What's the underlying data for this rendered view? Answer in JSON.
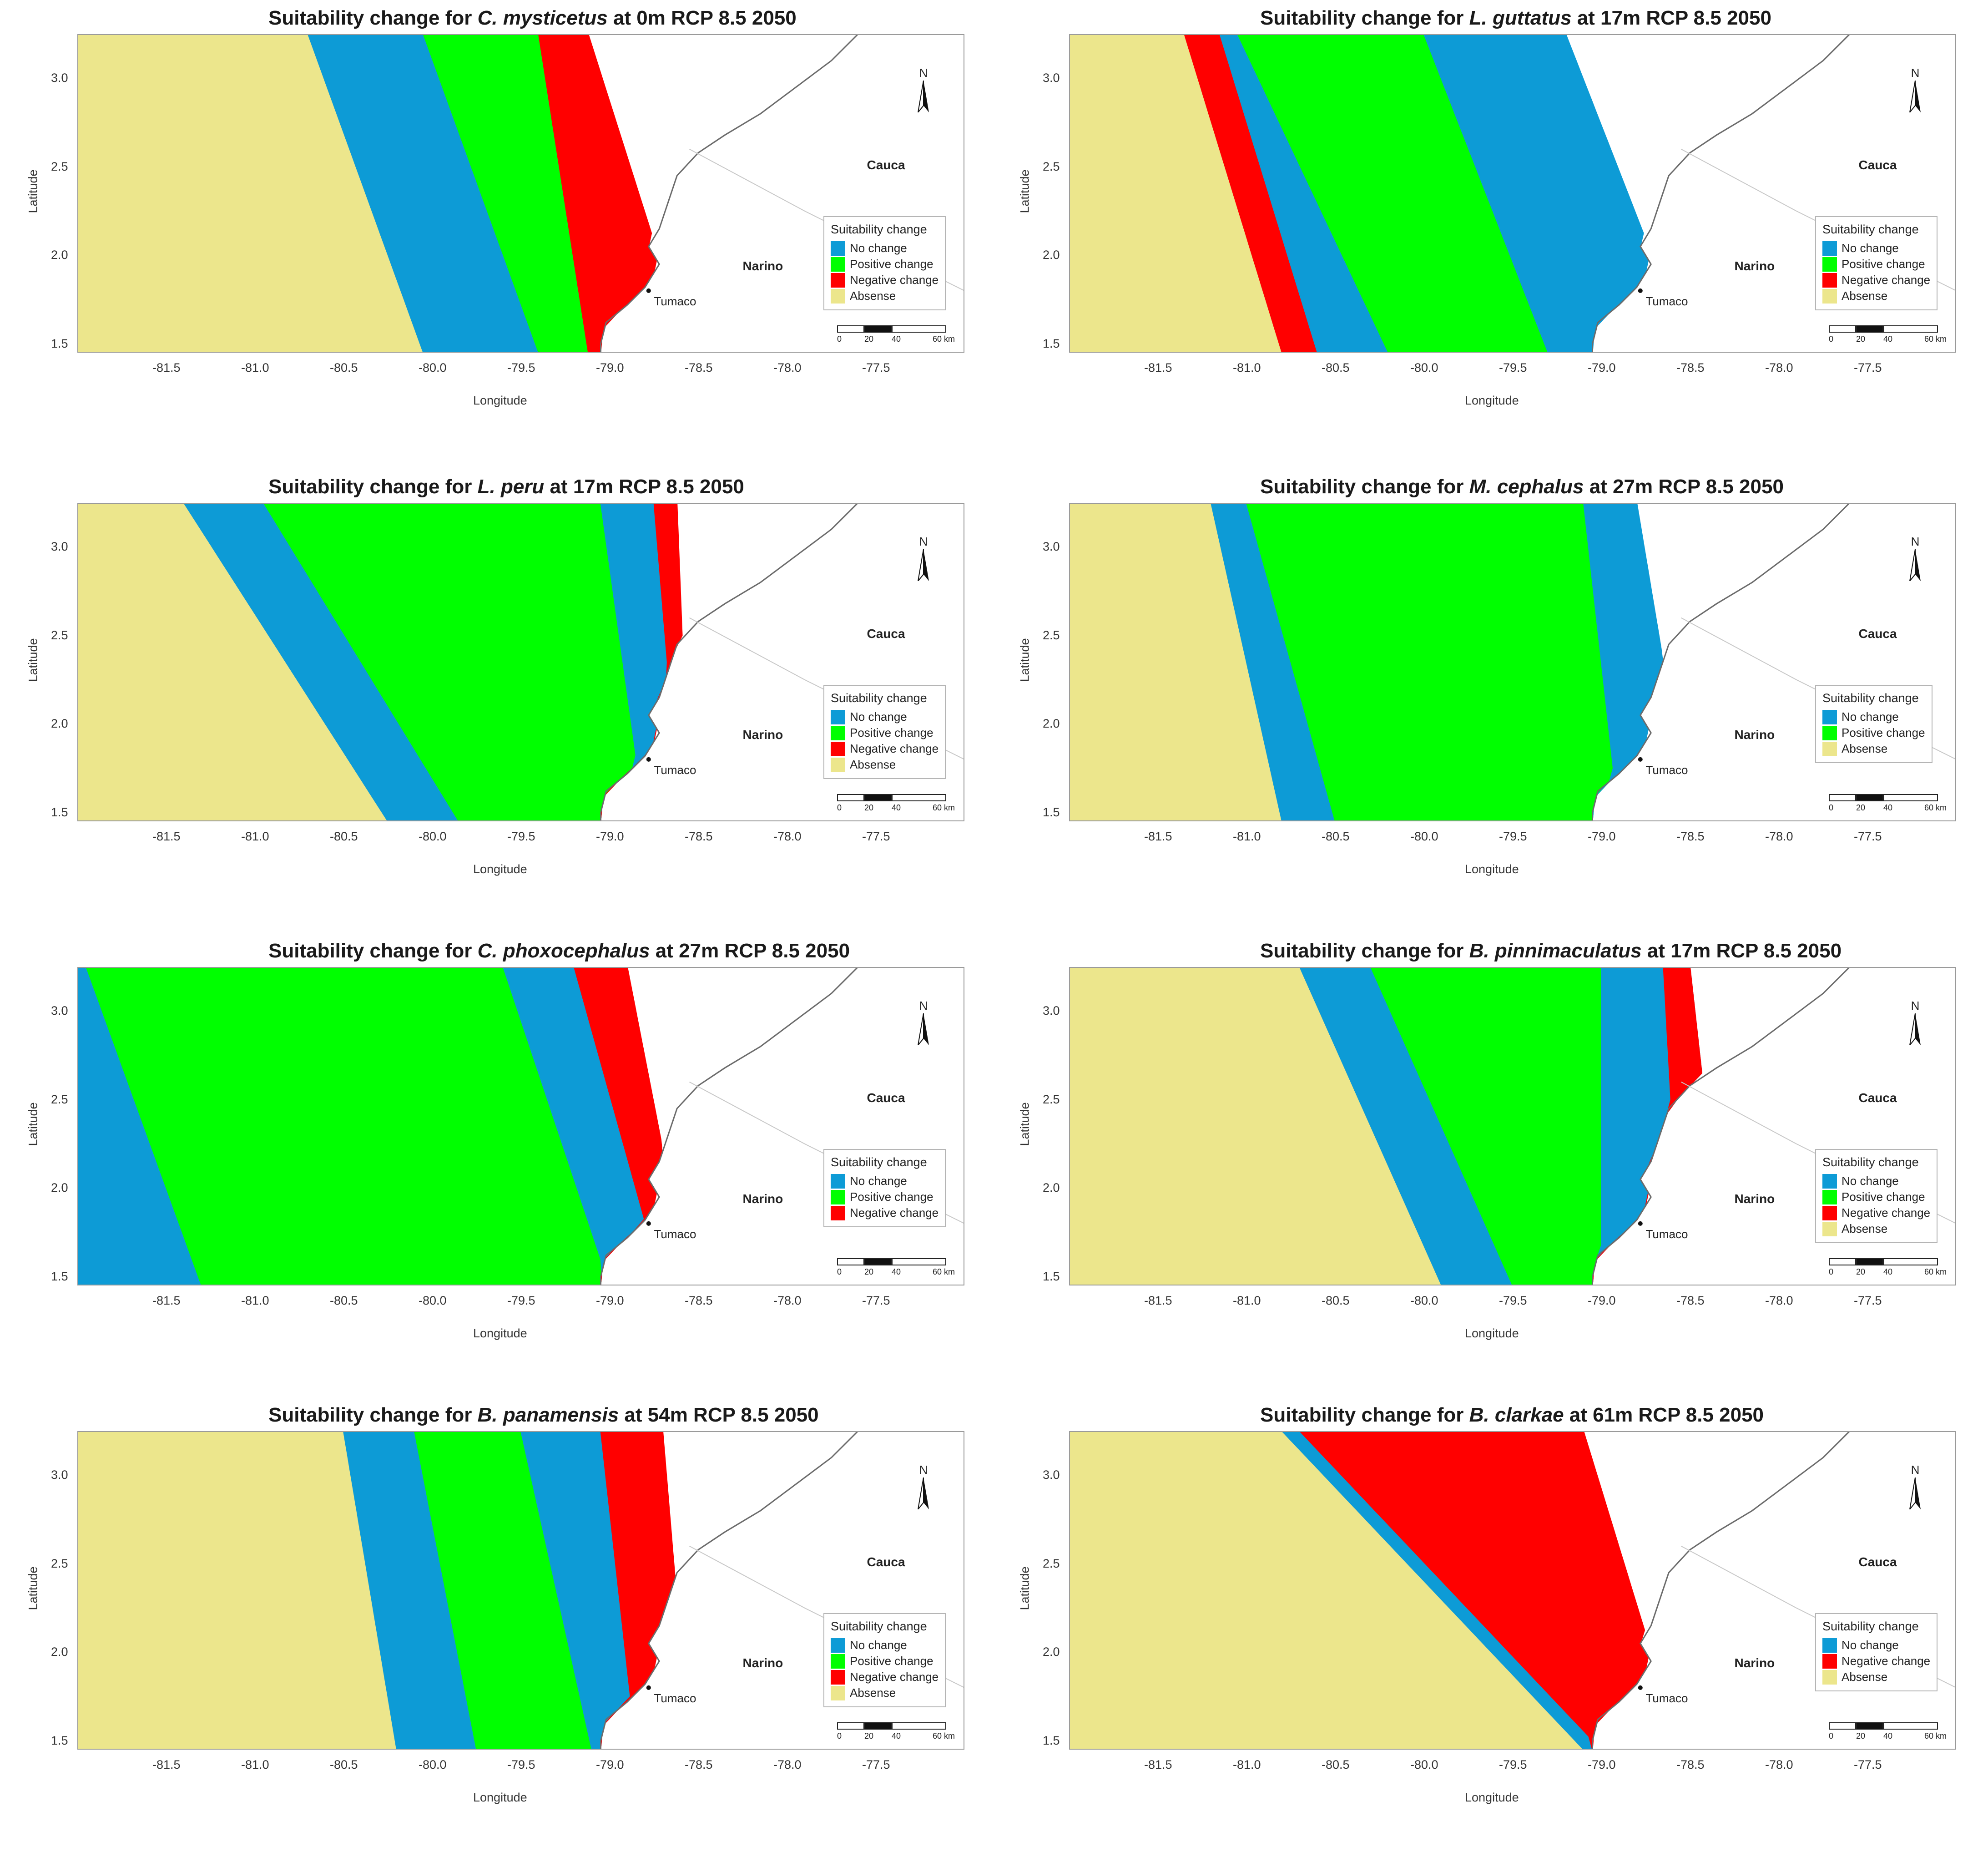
{
  "colors": {
    "no_change": "#0d9bd6",
    "positive_change": "#00ff00",
    "negative_change": "#ff0000",
    "absence": "#ece68c",
    "land": "#ffffff",
    "coast": "#6b6b6b"
  },
  "legend_title": "Suitability change",
  "axes": {
    "xlabel": "Longitude",
    "ylabel": "Latitude",
    "xticks": [
      "-81.5",
      "-81.0",
      "-80.5",
      "-80.0",
      "-79.5",
      "-79.0",
      "-78.5",
      "-78.0",
      "-77.5"
    ],
    "yticks": [
      "3.0",
      "2.5",
      "2.0",
      "1.5"
    ]
  },
  "places": {
    "cauca": "Cauca",
    "narino": "Narino",
    "tumaco": "Tumaco"
  },
  "north_label": "N",
  "scale_labels": [
    "0",
    "20",
    "40",
    "60 km"
  ],
  "panels": [
    {
      "title_prefix": "Suitability change for ",
      "species": "C. mysticetus",
      "title_suffix": " at 0m RCP 8.5 2050",
      "legend": [
        "No change",
        "Positive change",
        "Negative change",
        "Absense"
      ],
      "zones": [
        "absence",
        "no_change",
        "positive_change",
        "negative_change",
        "land"
      ],
      "bounds": [
        [
          -80.7,
          -80.05
        ],
        [
          -80.05,
          -79.4
        ],
        [
          -79.4,
          -79.12
        ],
        [
          -79.12,
          -78.55
        ]
      ]
    },
    {
      "title_prefix": "Suitability change for ",
      "species": "L. guttatus",
      "title_suffix": " at 17m RCP 8.5 2050",
      "legend": [
        "No change",
        "Positive change",
        "Negative change",
        "Absense"
      ],
      "zones": [
        "absence",
        "negative_change",
        "no_change",
        "positive_change",
        "no_change",
        "land"
      ],
      "bounds": [
        [
          -81.35,
          -80.8
        ],
        [
          -81.15,
          -80.6
        ],
        [
          -81.05,
          -80.2
        ],
        [
          -80.0,
          -79.3
        ],
        [
          -79.2,
          -78.5
        ]
      ]
    },
    {
      "title_prefix": "Suitability change for ",
      "species": "L. peru",
      "title_suffix": " at 17m RCP 8.5 2050",
      "legend": [
        "No change",
        "Positive change",
        "Negative change",
        "Absense"
      ],
      "zones": [
        "absence",
        "no_change",
        "positive_change",
        "no_change",
        "negative_change",
        "land"
      ],
      "bounds": [
        [
          -81.4,
          -80.25
        ],
        [
          -80.95,
          -79.85
        ],
        [
          -79.05,
          -78.8
        ],
        [
          -78.75,
          -78.6
        ],
        [
          -78.62,
          -78.55
        ]
      ]
    },
    {
      "title_prefix": "Suitability change for ",
      "species": "M. cephalus",
      "title_suffix": " at 27m RCP 8.5 2050",
      "legend": [
        "No change",
        "Positive change",
        "Absense"
      ],
      "zones": [
        "absence",
        "no_change",
        "positive_change",
        "no_change",
        "land"
      ],
      "bounds": [
        [
          -81.2,
          -80.8
        ],
        [
          -81.0,
          -80.5
        ],
        [
          -79.1,
          -78.9
        ],
        [
          -78.8,
          -78.5
        ]
      ]
    },
    {
      "title_prefix": "Suitability change for ",
      "species": "C. phoxocephalus",
      "title_suffix": " at 27m RCP 8.5 2050",
      "legend": [
        "No change",
        "Positive change",
        "Negative change"
      ],
      "zones": [
        "no_change",
        "positive_change",
        "no_change",
        "negative_change",
        "land"
      ],
      "bounds": [
        [
          -81.95,
          -81.3
        ],
        [
          -79.6,
          -79.0
        ],
        [
          -79.2,
          -78.7
        ],
        [
          -78.9,
          -78.55
        ]
      ]
    },
    {
      "title_prefix": "Suitability change for ",
      "species": "B. pinnimaculatus",
      "title_suffix": " at 17m RCP 8.5 2050",
      "legend": [
        "No change",
        "Positive change",
        "Negative change",
        "Absense"
      ],
      "zones": [
        "absence",
        "no_change",
        "positive_change",
        "no_change",
        "negative_change",
        "land"
      ],
      "bounds": [
        [
          -80.7,
          -79.9
        ],
        [
          -80.3,
          -79.5
        ],
        [
          -79.0,
          -79.0
        ],
        [
          -78.5,
          -78.3
        ],
        [
          -78.65,
          -78.55
        ]
      ]
    },
    {
      "title_prefix": "Suitability change for ",
      "species": "B. panamensis",
      "title_suffix": " at 54m RCP 8.5 2050",
      "legend": [
        "No change",
        "Positive change",
        "Negative change",
        "Absense"
      ],
      "zones": [
        "absence",
        "no_change",
        "positive_change",
        "no_change",
        "negative_change",
        "land"
      ],
      "bounds": [
        [
          -80.5,
          -80.2
        ],
        [
          -80.1,
          -79.75
        ],
        [
          -79.5,
          -79.1
        ],
        [
          -79.05,
          -78.85
        ],
        [
          -78.7,
          -78.55
        ]
      ]
    },
    {
      "title_prefix": "Suitability change for ",
      "species": "B. clarkae",
      "title_suffix": " at 61m RCP 8.5 2050",
      "legend": [
        "No change",
        "Negative change",
        "Absense"
      ],
      "zones": [
        "absence",
        "no_change",
        "negative_change",
        "land"
      ],
      "bounds": [
        [
          -80.8,
          -79.1
        ],
        [
          -80.7,
          -79.0
        ],
        [
          -79.1,
          -78.55
        ]
      ]
    }
  ]
}
